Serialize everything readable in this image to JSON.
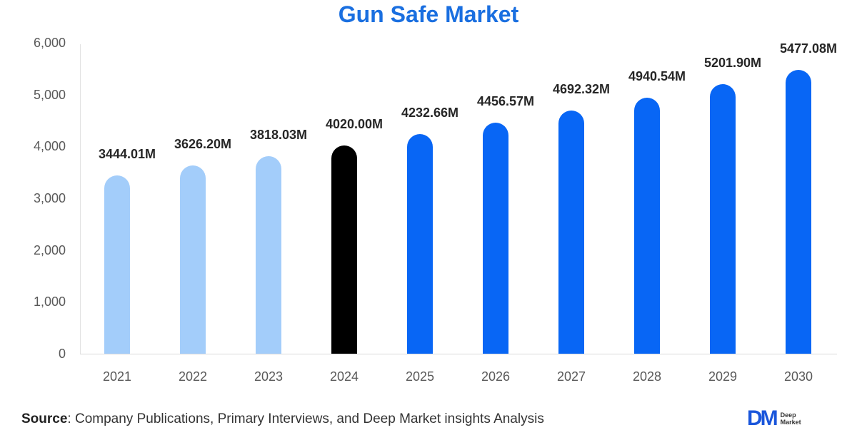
{
  "chart_data": {
    "type": "bar",
    "title": "Gun Safe Market",
    "xlabel": "",
    "ylabel": "",
    "categories": [
      "2021",
      "2022",
      "2023",
      "2024",
      "2025",
      "2026",
      "2027",
      "2028",
      "2029",
      "2030"
    ],
    "values": [
      3444.01,
      3626.2,
      3818.03,
      4020.0,
      4232.66,
      4456.57,
      4692.32,
      4940.54,
      5201.9,
      5477.08
    ],
    "value_labels": [
      "3444.01M",
      "3626.20M",
      "3818.03M",
      "4020.00M",
      "4232.66M",
      "4456.57M",
      "4692.32M",
      "4940.54M",
      "5201.90M",
      "5477.08M"
    ],
    "bar_colors": [
      "#a3cdfa",
      "#a3cdfa",
      "#a3cdfa",
      "#000000",
      "#0866f5",
      "#0866f5",
      "#0866f5",
      "#0866f5",
      "#0866f5",
      "#0866f5"
    ],
    "ylim": [
      0,
      6000
    ],
    "yticks": [
      0,
      1000,
      2000,
      3000,
      4000,
      5000,
      6000
    ],
    "ytick_labels": [
      "0",
      "1,000",
      "2,000",
      "3,000",
      "4,000",
      "5,000",
      "6,000"
    ],
    "grid": false,
    "legend": null,
    "unit": "M"
  },
  "colors": {
    "title": "#1a6fe0",
    "historical": "#a3cdfa",
    "base_year": "#000000",
    "forecast": "#0866f5"
  },
  "footer": {
    "source_label": "Source",
    "source_text": ": Company Publications, Primary Interviews, and Deep Market insights Analysis",
    "logo_mark": "DM",
    "logo_line1": "Deep",
    "logo_line2": "Market"
  }
}
